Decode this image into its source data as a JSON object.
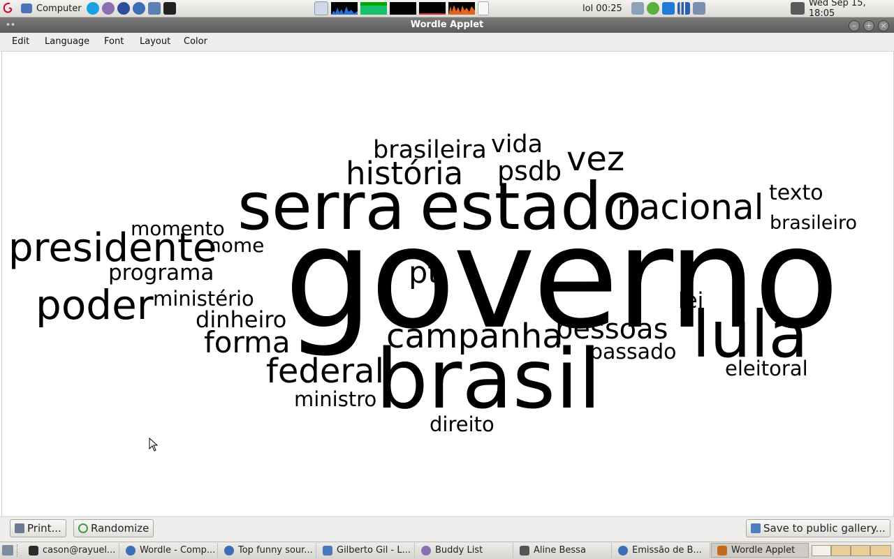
{
  "top_panel": {
    "places_label": "Computer",
    "status_text": "lol 00:25",
    "clock": "Wed Sep 15, 18:05"
  },
  "window": {
    "title": "Wordle Applet"
  },
  "menubar": {
    "items": [
      {
        "label": "Edit"
      },
      {
        "label": "Language"
      },
      {
        "label": "Font"
      },
      {
        "label": "Layout"
      },
      {
        "label": "Color"
      }
    ]
  },
  "wordcloud": {
    "words": [
      {
        "text": "governo"
      },
      {
        "text": "serra"
      },
      {
        "text": "estado"
      },
      {
        "text": "brasil"
      },
      {
        "text": "lula"
      },
      {
        "text": "presidente"
      },
      {
        "text": "poder"
      },
      {
        "text": "nacional"
      },
      {
        "text": "história"
      },
      {
        "text": "vez"
      },
      {
        "text": "brasileira"
      },
      {
        "text": "vida"
      },
      {
        "text": "psdb"
      },
      {
        "text": "texto"
      },
      {
        "text": "brasileiro"
      },
      {
        "text": "momento"
      },
      {
        "text": "nome"
      },
      {
        "text": "programa"
      },
      {
        "text": "pt"
      },
      {
        "text": "ministério"
      },
      {
        "text": "dinheiro"
      },
      {
        "text": "forma"
      },
      {
        "text": "campanha"
      },
      {
        "text": "pessoas"
      },
      {
        "text": "passado"
      },
      {
        "text": "lei"
      },
      {
        "text": "eleitoral"
      },
      {
        "text": "federal"
      },
      {
        "text": "ministro"
      },
      {
        "text": "direito"
      }
    ]
  },
  "buttons": {
    "print": "Print...",
    "randomize": "Randomize",
    "save_gallery": "Save to public gallery..."
  },
  "taskbar": {
    "tasks": [
      {
        "label": "cason@rayuel...",
        "icon": "terminal-icon",
        "color": "#2b2b2b"
      },
      {
        "label": "Wordle - Comp...",
        "icon": "browser-icon",
        "color": "#3d6fb6"
      },
      {
        "label": "Top funny sour...",
        "icon": "browser-icon",
        "color": "#3d6fb6"
      },
      {
        "label": "Gilberto Gil - L...",
        "icon": "document-icon",
        "color": "#4a79b8"
      },
      {
        "label": "Buddy List",
        "icon": "pidgin-icon",
        "color": "#8a6fb1"
      },
      {
        "label": "Aline Bessa",
        "icon": "chat-icon",
        "color": "#555555"
      },
      {
        "label": "Emissão de B...",
        "icon": "browser-icon",
        "color": "#3d6fb6"
      },
      {
        "label": "Wordle Applet",
        "icon": "java-icon",
        "color": "#c46a1e"
      }
    ]
  }
}
